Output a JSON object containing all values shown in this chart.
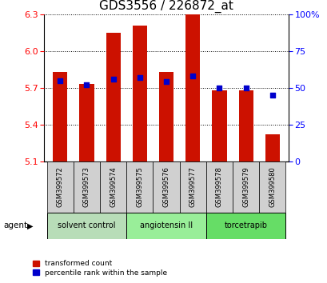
{
  "title": "GDS3556 / 226872_at",
  "samples": [
    "GSM399572",
    "GSM399573",
    "GSM399574",
    "GSM399575",
    "GSM399576",
    "GSM399577",
    "GSM399578",
    "GSM399579",
    "GSM399580"
  ],
  "bar_bottom": 5.1,
  "bar_tops": [
    5.83,
    5.73,
    6.15,
    6.21,
    5.83,
    6.3,
    5.68,
    5.68,
    5.32
  ],
  "percentile_values": [
    55,
    52,
    56,
    57,
    54,
    58,
    50,
    50,
    45
  ],
  "ylim_left": [
    5.1,
    6.3
  ],
  "ylim_right": [
    0,
    100
  ],
  "yticks_left": [
    5.1,
    5.4,
    5.7,
    6.0,
    6.3
  ],
  "yticks_right": [
    0,
    25,
    50,
    75,
    100
  ],
  "bar_color": "#cc1100",
  "dot_color": "#0000cc",
  "agent_groups": [
    {
      "label": "solvent control",
      "start": 0,
      "end": 3,
      "color": "#b8ddb8"
    },
    {
      "label": "angiotensin II",
      "start": 3,
      "end": 6,
      "color": "#99ee99"
    },
    {
      "label": "torcetrapib",
      "start": 6,
      "end": 9,
      "color": "#66dd66"
    }
  ],
  "agent_label": "agent",
  "legend_items": [
    {
      "label": "transformed count",
      "color": "#cc1100"
    },
    {
      "label": "percentile rank within the sample",
      "color": "#0000cc"
    }
  ],
  "bar_width": 0.55,
  "title_fontsize": 11,
  "tick_fontsize": 8,
  "sample_fontsize": 6,
  "agent_fontsize": 7,
  "legend_fontsize": 6.5
}
